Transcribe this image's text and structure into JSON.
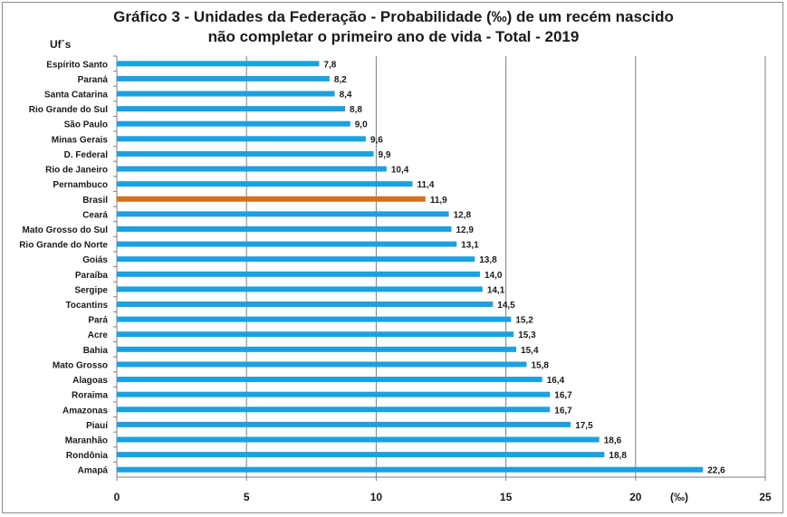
{
  "chart_data": {
    "type": "bar",
    "orientation": "horizontal",
    "title_line1": "Gráfico 3 - Unidades da Federação - Probabilidade (‰) de  um recém nascido",
    "title_line2": "não completar o primeiro ano de vida - Total - 2019",
    "ylabel": "Uf´s",
    "xunit": "(‰)",
    "xlim": [
      0,
      25
    ],
    "xticks": [
      "0",
      "5",
      "10",
      "15",
      "20",
      "25"
    ],
    "grid": "vertical",
    "categories": [
      "Espírito Santo",
      "Paraná",
      "Santa Catarina",
      "Rio Grande do Sul",
      "São Paulo",
      "Minas Gerais",
      "D. Federal",
      "Rio de Janeiro",
      "Pernambuco",
      "Brasil",
      "Ceará",
      "Mato Grosso do Sul",
      "Rio Grande do Norte",
      "Goiás",
      "Paraíba",
      "Sergipe",
      "Tocantins",
      "Pará",
      "Acre",
      "Bahia",
      "Mato Grosso",
      "Alagoas",
      "Roraima",
      "Amazonas",
      "Piauí",
      "Maranhão",
      "Rondônia",
      "Amapá"
    ],
    "values": [
      7.8,
      8.2,
      8.4,
      8.8,
      9.0,
      9.6,
      9.9,
      10.4,
      11.4,
      11.9,
      12.8,
      12.9,
      13.1,
      13.8,
      14.0,
      14.1,
      14.5,
      15.2,
      15.3,
      15.4,
      15.8,
      16.4,
      16.7,
      16.7,
      17.5,
      18.6,
      18.8,
      22.6
    ],
    "value_labels": [
      "7,8",
      "8,2",
      "8,4",
      "8,8",
      "9,0",
      "9,6",
      "9,9",
      "10,4",
      "11,4",
      "11,9",
      "12,8",
      "12,9",
      "13,1",
      "13,8",
      "14,0",
      "14,1",
      "14,5",
      "15,2",
      "15,3",
      "15,4",
      "15,8",
      "16,4",
      "16,7",
      "16,7",
      "17,5",
      "18,6",
      "18,8",
      "22,6"
    ],
    "highlight": "Brasil",
    "colors": {
      "bar": "#1ba1e2",
      "highlight": "#d4701c",
      "grid": "#7f7f7f",
      "axis": "#7f7f7f"
    }
  }
}
